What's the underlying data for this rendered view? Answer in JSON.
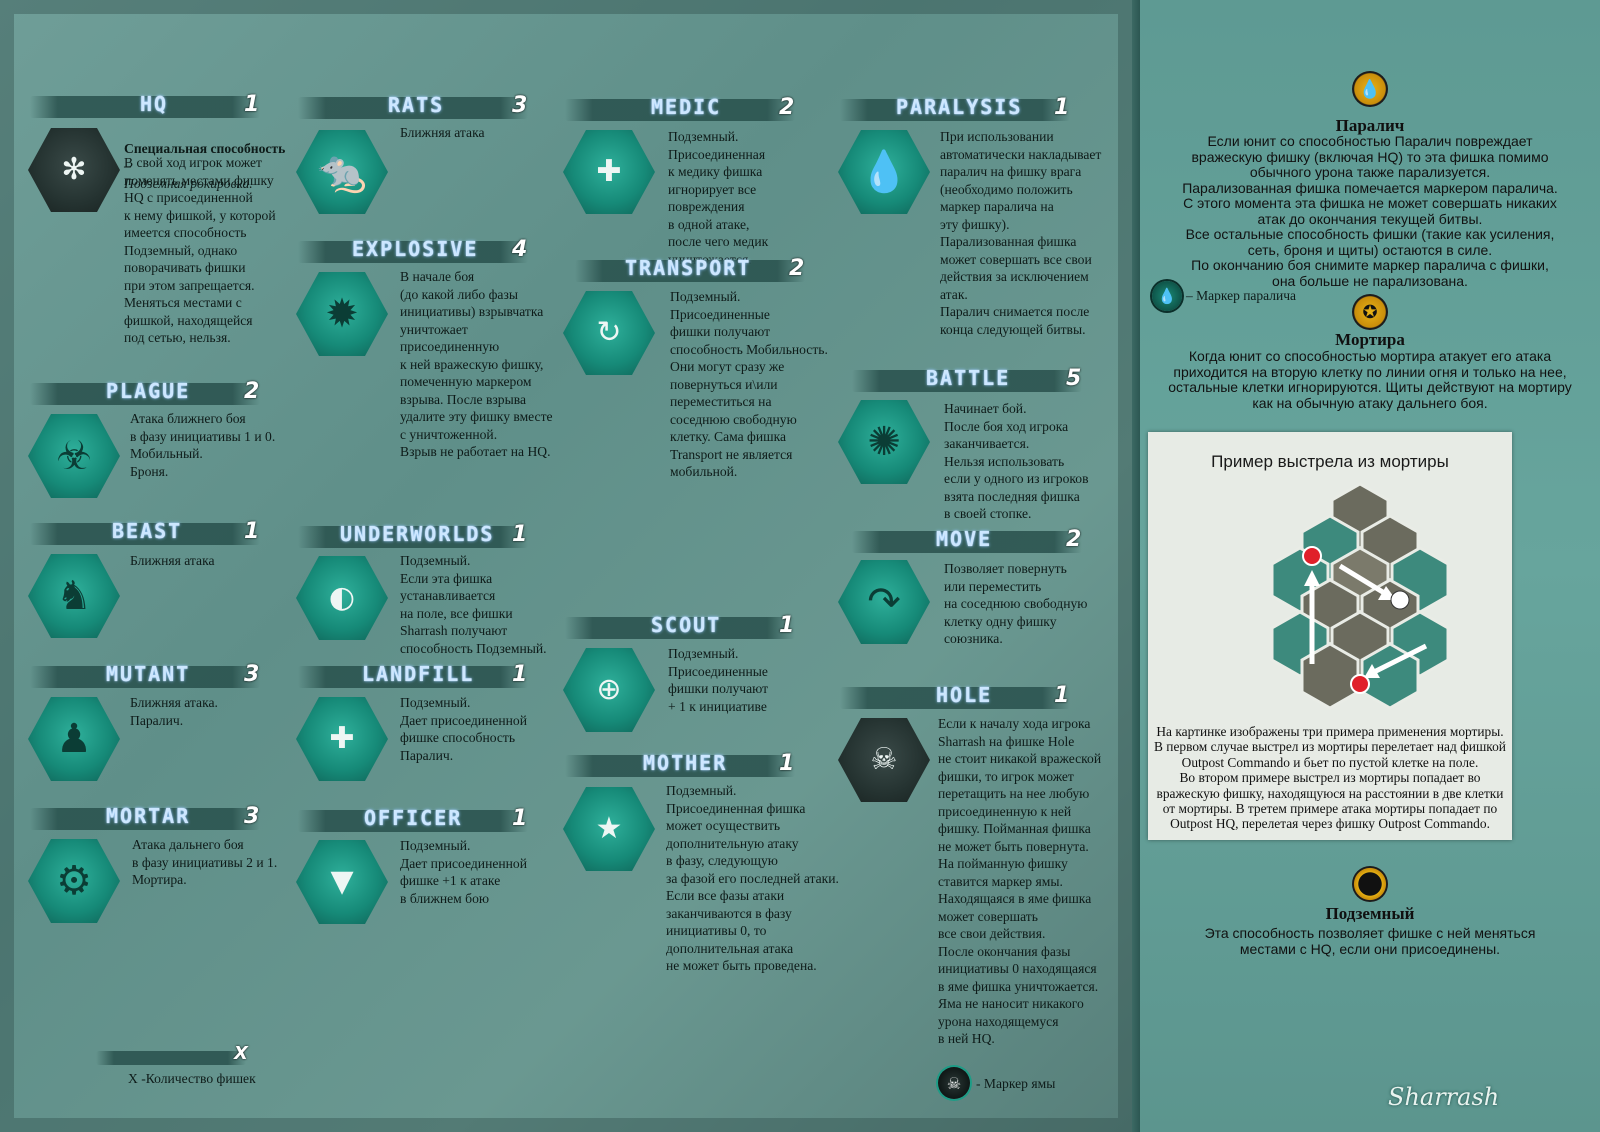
{
  "units": [
    {
      "name": "HQ",
      "count": "1",
      "desc": "В свой ход игрок может\nпоменять местами фишку\nHQ с присоединенной\nк нему фишкой, у которой\nимеется способность\nПодземный, однако\nповорачивать фишки\nпри этом запрещается.\nМеняться местами с\nфишкой, находящейся\nпод сетью, нельзя.",
      "special": "Специальная способность –",
      "special2": "Подземная рокировка."
    },
    {
      "name": "RATS",
      "count": "3",
      "desc": "Ближняя  атака"
    },
    {
      "name": "MEDIC",
      "count": "2",
      "desc": "Подземный.\nПрисоединенная\nк медику фишка\nигнорирует все\nповреждения\nв одной атаке,\nпосле чего медик\nуничтожается."
    },
    {
      "name": "PARALYSIS",
      "count": "1",
      "desc": "При использовании\nавтоматически накладывает\nпаралич на фишку врага\n(необходимо положить\nмаркер паралича на\nэту фишку).\nПарализованная фишка\nможет совершать все свои\nдействия за исключением\nатак.\nПаралич снимается после\nконца следующей битвы."
    },
    {
      "name": "EXPLOSIVE",
      "count": "4",
      "desc": "В начале боя\n(до какой либо фазы\nинициативы) взрывчатка\nуничтожает\nприсоединенную\nк ней вражескую фишку,\nпомеченную  маркером\nвзрыва. После взрыва\nудалите эту фишку вместе\nс уничтоженной.\nВзрыв не работает на HQ."
    },
    {
      "name": "TRANSPORT",
      "count": "2",
      "desc": "Подземный.\nПрисоединенные\nфишки получают\nспособность Мобильность.\nОни могут сразу же\nповернуться и\\или\nпереместиться на\nсоседнюю свободную\nклетку. Сама фишка\nTransport не является\nмобильной."
    },
    {
      "name": "PLAGUE",
      "count": "2",
      "desc": "Атака ближнего боя\nв фазу инициативы 1 и 0.\nМобильный.\nБроня."
    },
    {
      "name": "BATTLE",
      "count": "5",
      "desc": "Начинает бой.\nПосле боя ход игрока\nзаканчивается.\nНельзя использовать\nесли у одного из игроков\nвзята последняя фишка\nв своей стопке."
    },
    {
      "name": "BEAST",
      "count": "1",
      "desc": "Ближняя  атака"
    },
    {
      "name": "UNDERWORLDS",
      "count": "1",
      "desc": "Подземный.\nЕсли эта фишка\nустанавливается\nна поле, все фишки\nSharrash получают\nспособность Подземный."
    },
    {
      "name": "MOVE",
      "count": "2",
      "desc": "Позволяет повернуть\nили переместить\nна соседнюю свободную\nклетку одну фишку\nсоюзника."
    },
    {
      "name": "SCOUT",
      "count": "1",
      "desc": "Подземный.\nПрисоединенные\nфишки получают\n+ 1 к инициативе"
    },
    {
      "name": "MUTANT",
      "count": "3",
      "desc": "Ближняя атака.\nПаралич."
    },
    {
      "name": "LANDFILL",
      "count": "1",
      "desc": "Подземный.\nДает присоединенной\nфишке способность\nПаралич."
    },
    {
      "name": "HOLE",
      "count": "1",
      "desc": "Если к началу хода игрока\nSharrash на фишке Hole\nне стоит никакой вражеской\nфишки, то игрок может\nперетащить на нее любую\nприсоединенную к ней\nфишку. Пойманная фишка\nне может быть повернута.\nНа пойманную фишку\nставится маркер ямы.\nНаходящаяся в яме фишка\nможет совершать\nвсе свои действия.\nПосле окончания фазы\nинициативы 0 находящаяся\nв яме фишка уничтожается.\nЯма не наносит никакого\nурона находящемуся\nв ней HQ."
    },
    {
      "name": "MOTHER",
      "count": "1",
      "desc": "Подземный.\nПрисоединенная фишка\nможет осуществить\nдополнительную атаку\nв фазу, следующую\nза фазой его последней атаки.\nЕсли все фазы атаки\nзаканчиваются в фазу\nинициативы 0, то\nдополнительная атака\nне может быть проведена."
    },
    {
      "name": "MORTAR",
      "count": "3",
      "desc": "Атака дальнего боя\nв фазу инициативы 2 и 1.\nМортира."
    },
    {
      "name": "OFFICER",
      "count": "1",
      "desc": "Подземный.\nДает присоединенной\nфишке +1 к атаке\nв ближнем бою"
    }
  ],
  "legend": {
    "count_mark": "X",
    "count_text": "X -Количество фишек",
    "hole_marker": "- Маркер ямы",
    "paralysis_marker": "– Маркер паралича"
  },
  "rules": {
    "paralysis": {
      "title": "Паралич",
      "text": "Если юнит со способностью Паралич повреждает\nвражескую фишку (включая HQ) то эта фишка помимо\nобычного урона также парализуется.\nПарализованная фишка помечается маркером паралича.\nС этого момента эта фишка не может совершать никаких\nатак до окончания текущей битвы.\nВсе остальные способность фишки (такие как усиления,\nсеть, броня и щиты) остаются в силе.\nПо окончанию боя снимите маркер паралича с фишки,\nона больше не парализована."
    },
    "mortar": {
      "title": "Мортира",
      "text": "Когда юнит со способностью мортира атакует его атака\nприходится на вторую клетку по линии огня и только на нее,\nостальные клетки игнорируются. Щиты действуют на мортиру\nкак на обычную атаку дальнего боя."
    },
    "underground": {
      "title": "Подземный",
      "text": "Эта способность позволяет фишке с ней меняться\nместами с HQ, если они присоединены."
    }
  },
  "example": {
    "title": "Пример выстрела из мортиры",
    "text": "На картинке изображены три примера применения мортиры.\nВ первом случае выстрел из мортиры перелетает над фишкой\nOutpost Commando и бьет по пустой клетке на поле.\nВо втором примере выстрел из мортиры попадает во\nвражескую фишку, находящуюся на расстоянии в две клетки\nот мортиры. В третем примере атака мортиры попадает по\nOutpost HQ, перелетая через фишку Outpost Commando."
  },
  "brand": "Sharrash",
  "colors": {
    "tile": "#168a78",
    "banner": "#28504c",
    "accent": "#c98d0b"
  }
}
